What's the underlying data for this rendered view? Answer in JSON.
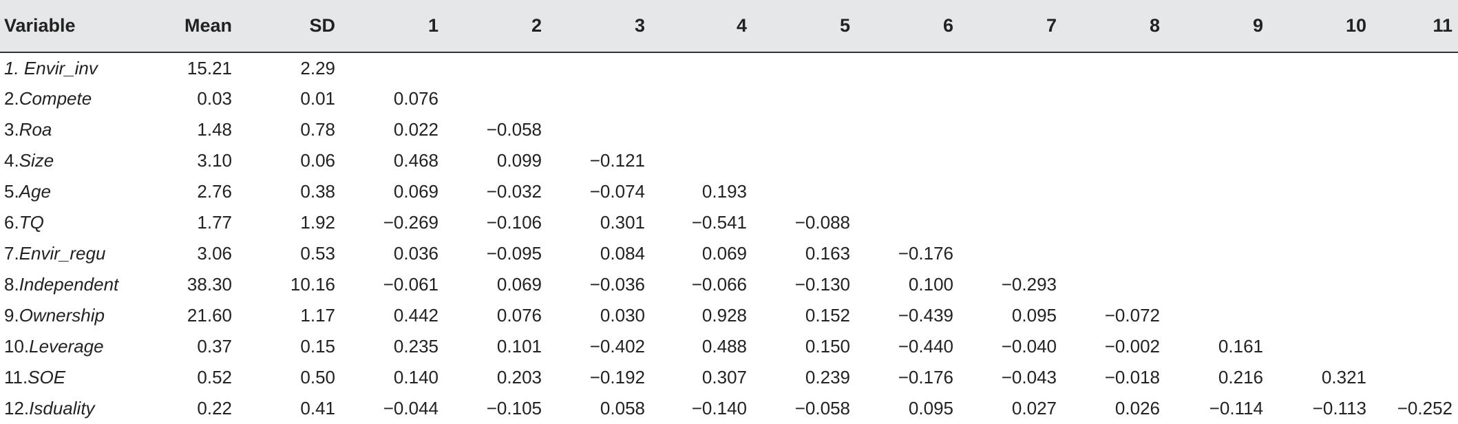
{
  "columns": [
    "Variable",
    "Mean",
    "SD",
    "1",
    "2",
    "3",
    "4",
    "5",
    "6",
    "7",
    "8",
    "9",
    "10",
    "11"
  ],
  "rows": [
    {
      "prefix": "1. ",
      "name": "Envir_inv",
      "cells": [
        "15.21",
        "2.29",
        "",
        "",
        "",
        "",
        "",
        "",
        "",
        "",
        "",
        "",
        ""
      ]
    },
    {
      "prefix": "2.",
      "name": "Compete",
      "cells": [
        "0.03",
        "0.01",
        "0.076",
        "",
        "",
        "",
        "",
        "",
        "",
        "",
        "",
        "",
        ""
      ]
    },
    {
      "prefix": "3.",
      "name": "Roa",
      "cells": [
        "1.48",
        "0.78",
        "0.022",
        "−0.058",
        "",
        "",
        "",
        "",
        "",
        "",
        "",
        "",
        ""
      ]
    },
    {
      "prefix": "4.",
      "name": "Size",
      "cells": [
        "3.10",
        "0.06",
        "0.468",
        "0.099",
        "−0.121",
        "",
        "",
        "",
        "",
        "",
        "",
        "",
        ""
      ]
    },
    {
      "prefix": "5.",
      "name": "Age",
      "cells": [
        "2.76",
        "0.38",
        "0.069",
        "−0.032",
        "−0.074",
        "0.193",
        "",
        "",
        "",
        "",
        "",
        "",
        ""
      ]
    },
    {
      "prefix": "6.",
      "name": "TQ",
      "cells": [
        "1.77",
        "1.92",
        "−0.269",
        "−0.106",
        "0.301",
        "−0.541",
        "−0.088",
        "",
        "",
        "",
        "",
        "",
        ""
      ]
    },
    {
      "prefix": "7.",
      "name": "Envir_regu",
      "cells": [
        "3.06",
        "0.53",
        "0.036",
        "−0.095",
        "0.084",
        "0.069",
        "0.163",
        "−0.176",
        "",
        "",
        "",
        "",
        ""
      ]
    },
    {
      "prefix": "8.",
      "name": "Independent",
      "cells": [
        "38.30",
        "10.16",
        "−0.061",
        "0.069",
        "−0.036",
        "−0.066",
        "−0.130",
        "0.100",
        "−0.293",
        "",
        "",
        "",
        ""
      ]
    },
    {
      "prefix": "9.",
      "name": "Ownership",
      "cells": [
        "21.60",
        "1.17",
        "0.442",
        "0.076",
        "0.030",
        "0.928",
        "0.152",
        "−0.439",
        "0.095",
        "−0.072",
        "",
        "",
        ""
      ]
    },
    {
      "prefix": "10.",
      "name": "Leverage",
      "cells": [
        "0.37",
        "0.15",
        "0.235",
        "0.101",
        "−0.402",
        "0.488",
        "0.150",
        "−0.440",
        "−0.040",
        "−0.002",
        "0.161",
        "",
        ""
      ]
    },
    {
      "prefix": "11.",
      "name": "SOE",
      "cells": [
        "0.52",
        "0.50",
        "0.140",
        "0.203",
        "−0.192",
        "0.307",
        "0.239",
        "−0.176",
        "−0.043",
        "−0.018",
        "0.216",
        "0.321",
        ""
      ]
    },
    {
      "prefix": "12.",
      "name": "Isduality",
      "cells": [
        "0.22",
        "0.41",
        "−0.044",
        "−0.105",
        "0.058",
        "−0.140",
        "−0.058",
        "0.095",
        "0.027",
        "0.026",
        "−0.114",
        "−0.113",
        "−0.252"
      ]
    }
  ]
}
